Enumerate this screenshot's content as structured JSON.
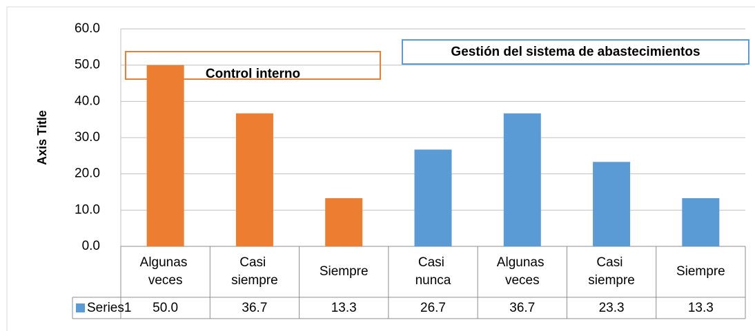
{
  "chart_data": {
    "type": "bar",
    "y_axis_title": "Axis Title",
    "categories": [
      "Algunas veces",
      "Casi siempre",
      "Siempre",
      "Casi nunca",
      "Algunas veces",
      "Casi siempre",
      "Siempre"
    ],
    "series": [
      {
        "name": "Series1",
        "color": "#5b9bd5",
        "values": [
          50,
          36.7,
          13.3,
          26.7,
          36.7,
          23.3,
          13.3
        ],
        "value_labels": [
          "50.0",
          "36.7",
          "13.3",
          "26.7",
          "36.7",
          "23.3",
          "13.3"
        ],
        "colors": [
          "#ed7d31",
          "#ed7d31",
          "#ed7d31",
          "#5b9bd5",
          "#5b9bd5",
          "#5b9bd5",
          "#5b9bd5"
        ]
      }
    ],
    "annotations": [
      {
        "text": "Control interno",
        "color": "#ed7d31"
      },
      {
        "text": "Gestión del sistema de abastecimientos",
        "color": "#5b9bd5"
      }
    ],
    "ylim": [
      0,
      60
    ],
    "yticks": [
      {
        "value": 0,
        "label": "0.0"
      },
      {
        "value": 10,
        "label": "10.0"
      },
      {
        "value": 20,
        "label": "20.0"
      },
      {
        "value": 30,
        "label": "30.0"
      },
      {
        "value": 40,
        "label": "40.0"
      },
      {
        "value": 50,
        "label": "50.0"
      },
      {
        "value": 60,
        "label": "60.0"
      }
    ],
    "grid": true
  }
}
